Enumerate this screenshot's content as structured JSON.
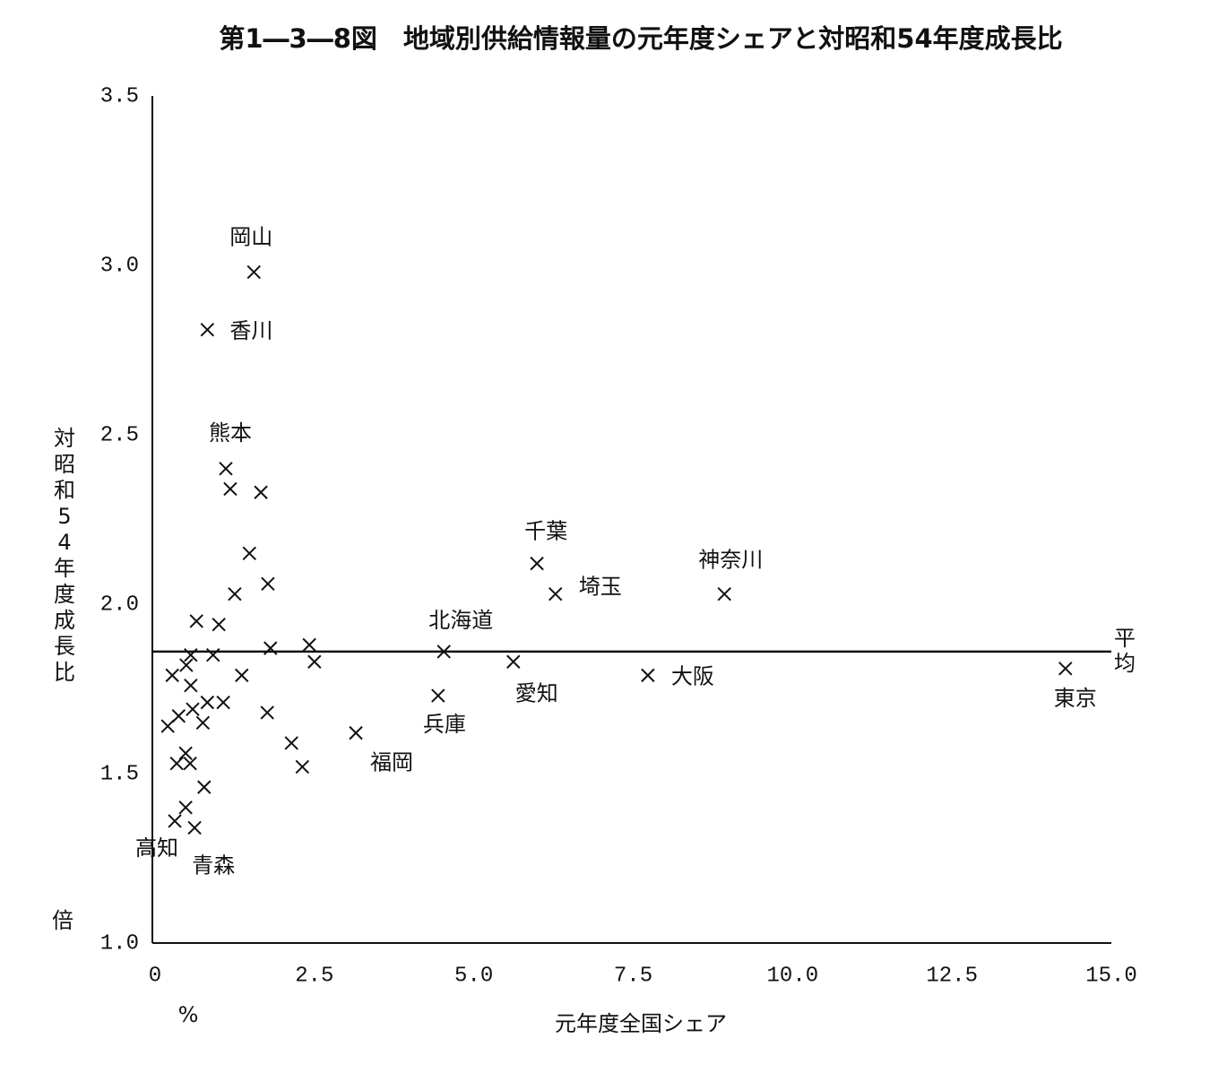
{
  "chart_data": {
    "type": "scatter",
    "title": "第1―3―8図　地域別供給情報量の元年度シェアと対昭和54年度成長比",
    "x_label": "元年度全国シェア",
    "x_unit": "%",
    "y_label": "対昭和54年度成長比",
    "y_unit": "倍",
    "xlim": [
      0,
      15
    ],
    "ylim": [
      1.0,
      3.5
    ],
    "xticks": [
      0,
      2.5,
      {
        "value": 5,
        "label": "5.0"
      },
      {
        "value": 7.5,
        "label": "7.5"
      },
      {
        "value": 10,
        "label": "10.0"
      },
      12.5,
      {
        "value": 15,
        "label": "15.0"
      }
    ],
    "yticks": [
      {
        "value": 1,
        "label": "1.0"
      },
      1.5,
      {
        "value": 2,
        "label": "2.0"
      },
      2.5,
      {
        "value": 3,
        "label": "3.0"
      },
      3.5
    ],
    "average": {
      "label": "平均",
      "value": 1.86
    },
    "color": "#111111",
    "x": [
      1.55,
      0.82,
      1.11,
      1.18,
      1.66,
      1.48,
      1.25,
      1.77,
      0.65,
      1.0,
      1.81,
      0.91,
      0.56,
      0.49,
      0.27,
      1.36,
      0.56,
      1.07,
      0.82,
      0.59,
      0.37,
      0.75,
      0.2,
      1.76,
      2.42,
      2.5,
      2.14,
      2.31,
      0.48,
      0.55,
      0.34,
      0.77,
      0.48,
      0.31,
      0.62,
      3.15,
      4.44,
      4.53,
      5.62,
      5.99,
      6.28,
      7.73,
      8.93,
      14.28
    ],
    "values": [
      2.98,
      2.81,
      2.4,
      2.34,
      2.33,
      2.15,
      2.03,
      2.06,
      1.95,
      1.94,
      1.87,
      1.85,
      1.85,
      1.82,
      1.79,
      1.79,
      1.76,
      1.71,
      1.71,
      1.69,
      1.67,
      1.65,
      1.64,
      1.68,
      1.88,
      1.83,
      1.59,
      1.52,
      1.56,
      1.53,
      1.53,
      1.46,
      1.4,
      1.36,
      1.34,
      1.62,
      1.73,
      1.86,
      1.83,
      2.12,
      2.03,
      1.79,
      2.03,
      1.81
    ],
    "labels": [
      "岡山",
      "香川",
      "熊本",
      null,
      null,
      null,
      null,
      null,
      null,
      null,
      null,
      null,
      null,
      null,
      null,
      null,
      null,
      null,
      null,
      null,
      null,
      null,
      null,
      null,
      null,
      null,
      null,
      null,
      null,
      null,
      null,
      null,
      null,
      "高知",
      "青森",
      "福岡",
      "兵庫",
      "北海道",
      "愛知",
      "千葉",
      "埼玉",
      "大阪",
      "神奈川",
      "東京"
    ]
  }
}
